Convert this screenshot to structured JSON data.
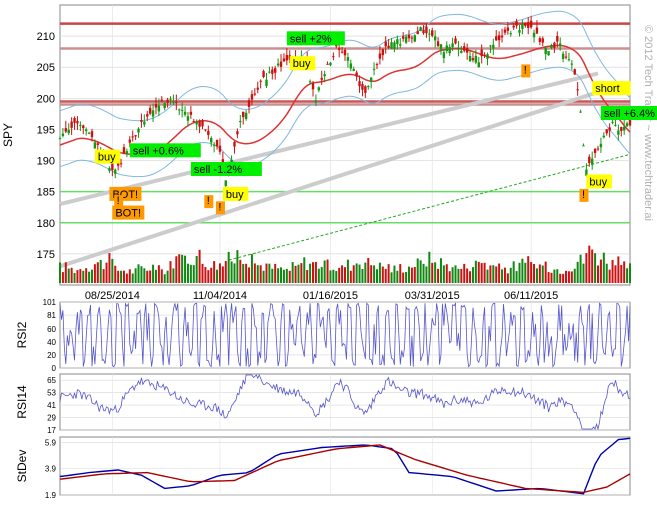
{
  "watermark": "© 2012 Tech Trader ~ www.techtrader.ai",
  "chart_data": [
    {
      "type": "candlestick",
      "ylabel": "SPY",
      "ylim": [
        170,
        215
      ],
      "yticks": [
        175,
        180,
        185,
        190,
        195,
        200,
        205,
        210
      ],
      "xticks": [
        "08/25/2014",
        "11/04/2014",
        "01/16/2015",
        "03/31/2015",
        "06/11/2015"
      ],
      "close_path": [
        [
          0,
          194
        ],
        [
          6,
          196
        ],
        [
          12,
          193
        ],
        [
          16,
          190
        ],
        [
          19,
          188
        ],
        [
          23,
          192
        ],
        [
          28,
          196
        ],
        [
          33,
          199
        ],
        [
          38,
          200
        ],
        [
          43,
          198
        ],
        [
          48,
          196
        ],
        [
          52,
          194
        ],
        [
          55,
          191
        ],
        [
          57,
          187
        ],
        [
          59,
          190
        ],
        [
          62,
          196
        ],
        [
          66,
          200
        ],
        [
          70,
          203
        ],
        [
          75,
          205
        ],
        [
          79,
          206
        ],
        [
          82,
          207
        ],
        [
          85,
          205
        ],
        [
          88,
          200
        ],
        [
          91,
          204
        ],
        [
          95,
          208
        ],
        [
          99,
          207
        ],
        [
          102,
          203
        ],
        [
          105,
          201
        ],
        [
          108,
          205
        ],
        [
          112,
          208
        ],
        [
          116,
          209
        ],
        [
          120,
          210
        ],
        [
          124,
          211
        ],
        [
          128,
          210
        ],
        [
          132,
          208
        ],
        [
          136,
          209
        ],
        [
          140,
          207
        ],
        [
          144,
          206
        ],
        [
          148,
          208
        ],
        [
          152,
          210
        ],
        [
          156,
          211
        ],
        [
          160,
          212
        ],
        [
          164,
          210
        ],
        [
          168,
          208
        ],
        [
          171,
          209
        ],
        [
          174,
          207
        ],
        [
          177,
          204
        ],
        [
          179,
          198
        ],
        [
          181,
          188
        ],
        [
          183,
          190
        ],
        [
          186,
          193
        ],
        [
          190,
          196
        ],
        [
          193,
          195
        ],
        [
          196,
          196
        ]
      ],
      "volume": [
        2.4,
        2.1,
        2.6,
        3.0,
        3.3,
        2.0,
        1.8,
        2.2,
        2.5,
        2.0,
        3.2,
        3.8,
        4.1,
        3.0,
        2.8,
        3.5,
        4.4,
        3.2,
        2.7,
        2.3,
        2.0,
        2.4,
        3.1,
        2.9,
        2.6,
        2.2,
        2.8,
        3.3,
        3.0,
        2.5,
        2.1,
        2.4,
        2.9,
        3.6,
        3.1,
        2.7,
        2.3,
        2.8,
        3.2,
        2.6,
        2.2,
        2.5,
        3.0,
        2.7,
        2.4,
        2.1,
        2.6,
        3.4,
        4.8,
        3.9,
        3.0,
        2.4,
        2.2
      ],
      "signals": [
        {
          "label": "buy",
          "x": 12,
          "y": 190,
          "style": "yellow"
        },
        {
          "label": "sell +0.6%",
          "x": 24,
          "y": 191,
          "style": "green"
        },
        {
          "label": "BOT!",
          "x": 17,
          "y": 184,
          "style": "orange"
        },
        {
          "label": "BOT!",
          "x": 18,
          "y": 181,
          "style": "orange"
        },
        {
          "label": "sell -1.2%",
          "x": 45,
          "y": 188,
          "style": "green"
        },
        {
          "label": "buy",
          "x": 56,
          "y": 184,
          "style": "yellow"
        },
        {
          "label": "sell +2%",
          "x": 78,
          "y": 209,
          "style": "green"
        },
        {
          "label": "buy",
          "x": 79,
          "y": 205,
          "style": "yellow"
        },
        {
          "label": "short",
          "x": 183,
          "y": 201,
          "style": "yellow"
        },
        {
          "label": "sell +6.4%",
          "x": 186,
          "y": 197,
          "style": "green"
        },
        {
          "label": "buy",
          "x": 181,
          "y": 186,
          "style": "yellow"
        }
      ],
      "alerts": [
        {
          "label": "!",
          "x": 20,
          "y": 183
        },
        {
          "label": "!",
          "x": 51,
          "y": 183
        },
        {
          "label": "!",
          "x": 55,
          "y": 182
        },
        {
          "label": "!",
          "x": 160,
          "y": 204
        },
        {
          "label": "!",
          "x": 180,
          "y": 184
        }
      ],
      "hlines": [
        {
          "y": 185,
          "color": "#66dd66"
        },
        {
          "y": 180,
          "color": "#66dd66"
        },
        {
          "y": 199,
          "color": "#c89090"
        },
        {
          "y": 199.5,
          "color": "#cc5555"
        },
        {
          "y": 208,
          "color": "#c89090"
        },
        {
          "y": 212,
          "color": "#cc4444"
        }
      ],
      "trendlines": [
        {
          "from": [
            0,
            173
          ],
          "to": [
            185,
            201
          ],
          "color": "#cccccc",
          "style": "solid"
        },
        {
          "from": [
            0,
            183
          ],
          "to": [
            185,
            204
          ],
          "color": "#cccccc",
          "style": "solid"
        },
        {
          "from": [
            58,
            174
          ],
          "to": [
            196,
            191
          ],
          "color": "#22aa22",
          "style": "dashed"
        }
      ]
    },
    {
      "type": "line",
      "ylabel": "RSI2",
      "ylim": [
        0,
        101
      ],
      "yticks": [
        0,
        20,
        40,
        60,
        81,
        101
      ],
      "color": "#5555cc"
    },
    {
      "type": "line",
      "ylabel": "RSI14",
      "ylim": [
        17,
        71
      ],
      "yticks": [
        17,
        29,
        41,
        53,
        65
      ],
      "color": "#5555cc"
    },
    {
      "type": "line",
      "ylabel": "StDev",
      "ylim": [
        1.9,
        6.3
      ],
      "yticks": [
        1.9,
        3.9,
        5.9
      ],
      "series": [
        {
          "color": "#0000aa",
          "points": [
            [
              0,
              3.3
            ],
            [
              10,
              3.6
            ],
            [
              20,
              3.8
            ],
            [
              28,
              3.4
            ],
            [
              36,
              2.4
            ],
            [
              45,
              2.6
            ],
            [
              55,
              3.4
            ],
            [
              65,
              3.6
            ],
            [
              75,
              5.0
            ],
            [
              90,
              5.5
            ],
            [
              105,
              5.7
            ],
            [
              115,
              5.4
            ],
            [
              120,
              3.6
            ],
            [
              135,
              3.3
            ],
            [
              150,
              2.2
            ],
            [
              165,
              2.4
            ],
            [
              180,
              2.0
            ],
            [
              185,
              4.8
            ],
            [
              192,
              6.1
            ],
            [
              196,
              6.2
            ]
          ]
        },
        {
          "color": "#aa0000",
          "points": [
            [
              0,
              3.1
            ],
            [
              15,
              3.5
            ],
            [
              30,
              3.6
            ],
            [
              45,
              2.9
            ],
            [
              60,
              3.0
            ],
            [
              75,
              4.5
            ],
            [
              95,
              5.4
            ],
            [
              110,
              5.7
            ],
            [
              122,
              4.6
            ],
            [
              140,
              3.4
            ],
            [
              160,
              2.4
            ],
            [
              180,
              2.1
            ],
            [
              188,
              2.5
            ],
            [
              196,
              3.5
            ]
          ]
        }
      ]
    }
  ]
}
